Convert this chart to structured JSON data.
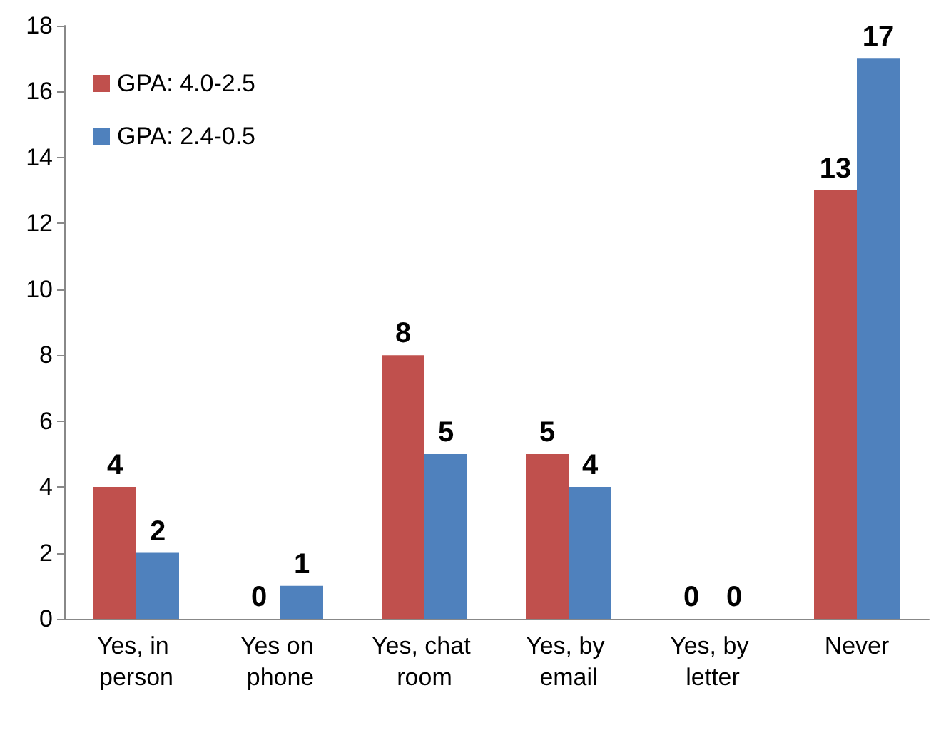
{
  "chart_data": {
    "type": "bar",
    "categories": [
      "Yes, in person",
      "Yes on phone",
      "Yes, chat room",
      "Yes, by email",
      "Yes, by letter",
      "Never"
    ],
    "series": [
      {
        "name": "GPA: 4.0-2.5",
        "color": "#c0504d",
        "values": [
          4,
          0,
          8,
          5,
          0,
          13
        ]
      },
      {
        "name": "GPA: 2.4-0.5",
        "color": "#4f81bd",
        "values": [
          2,
          1,
          5,
          4,
          0,
          17
        ]
      }
    ],
    "ylim": [
      0,
      18
    ],
    "yticks": [
      0,
      2,
      4,
      6,
      8,
      10,
      12,
      14,
      16,
      18
    ],
    "grid": false,
    "legend": "top left",
    "data_labels": true
  }
}
